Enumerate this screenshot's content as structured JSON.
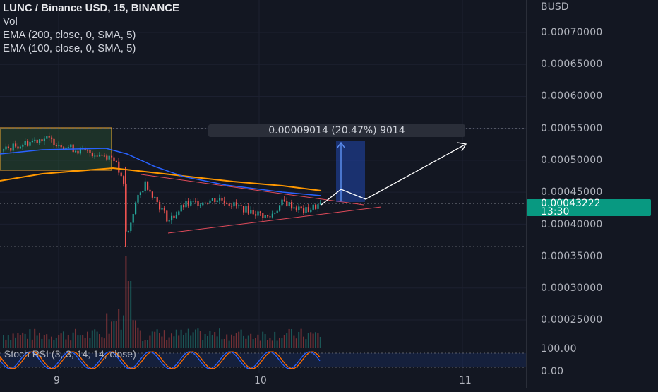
{
  "legend": {
    "title": "LUNC / Binance USD, 15, BINANCE",
    "vol": "Vol",
    "ema1": "EMA (200, close, 0, SMA, 5)",
    "ema2": "EMA (100, close, 0, SMA, 5)"
  },
  "price_axis": {
    "unit": "BUSD",
    "current_price": "0.00043222",
    "countdown": "13:30",
    "current_color": "#089981"
  },
  "measure_label": "0.00009014 (20.47%) 9014",
  "stoch": {
    "label": "Stoch RSI (3, 3, 14, 14, close)",
    "upper": "100.00",
    "lower": "0.00"
  },
  "chart_data": {
    "type": "candlestick",
    "y_ticks": [
      "0.00070000",
      "0.00065000",
      "0.00060000",
      "0.00055000",
      "0.00050000",
      "0.00045000",
      "0.00040000",
      "0.00035000",
      "0.00030000",
      "0.00025000"
    ],
    "y_tick_values": [
      0.0007,
      0.00065,
      0.0006,
      0.00055,
      0.0005,
      0.00045,
      0.0004,
      0.00035,
      0.0003,
      0.00025
    ],
    "x_ticks": [
      "9",
      "10",
      "11"
    ],
    "ylim": [
      0.00021,
      0.00075
    ],
    "current_price": 0.00043222,
    "ema200_color": "#ff9800",
    "ema100_color": "#2962ff",
    "up_color": "#26a69a",
    "down_color": "#ef5350"
  }
}
